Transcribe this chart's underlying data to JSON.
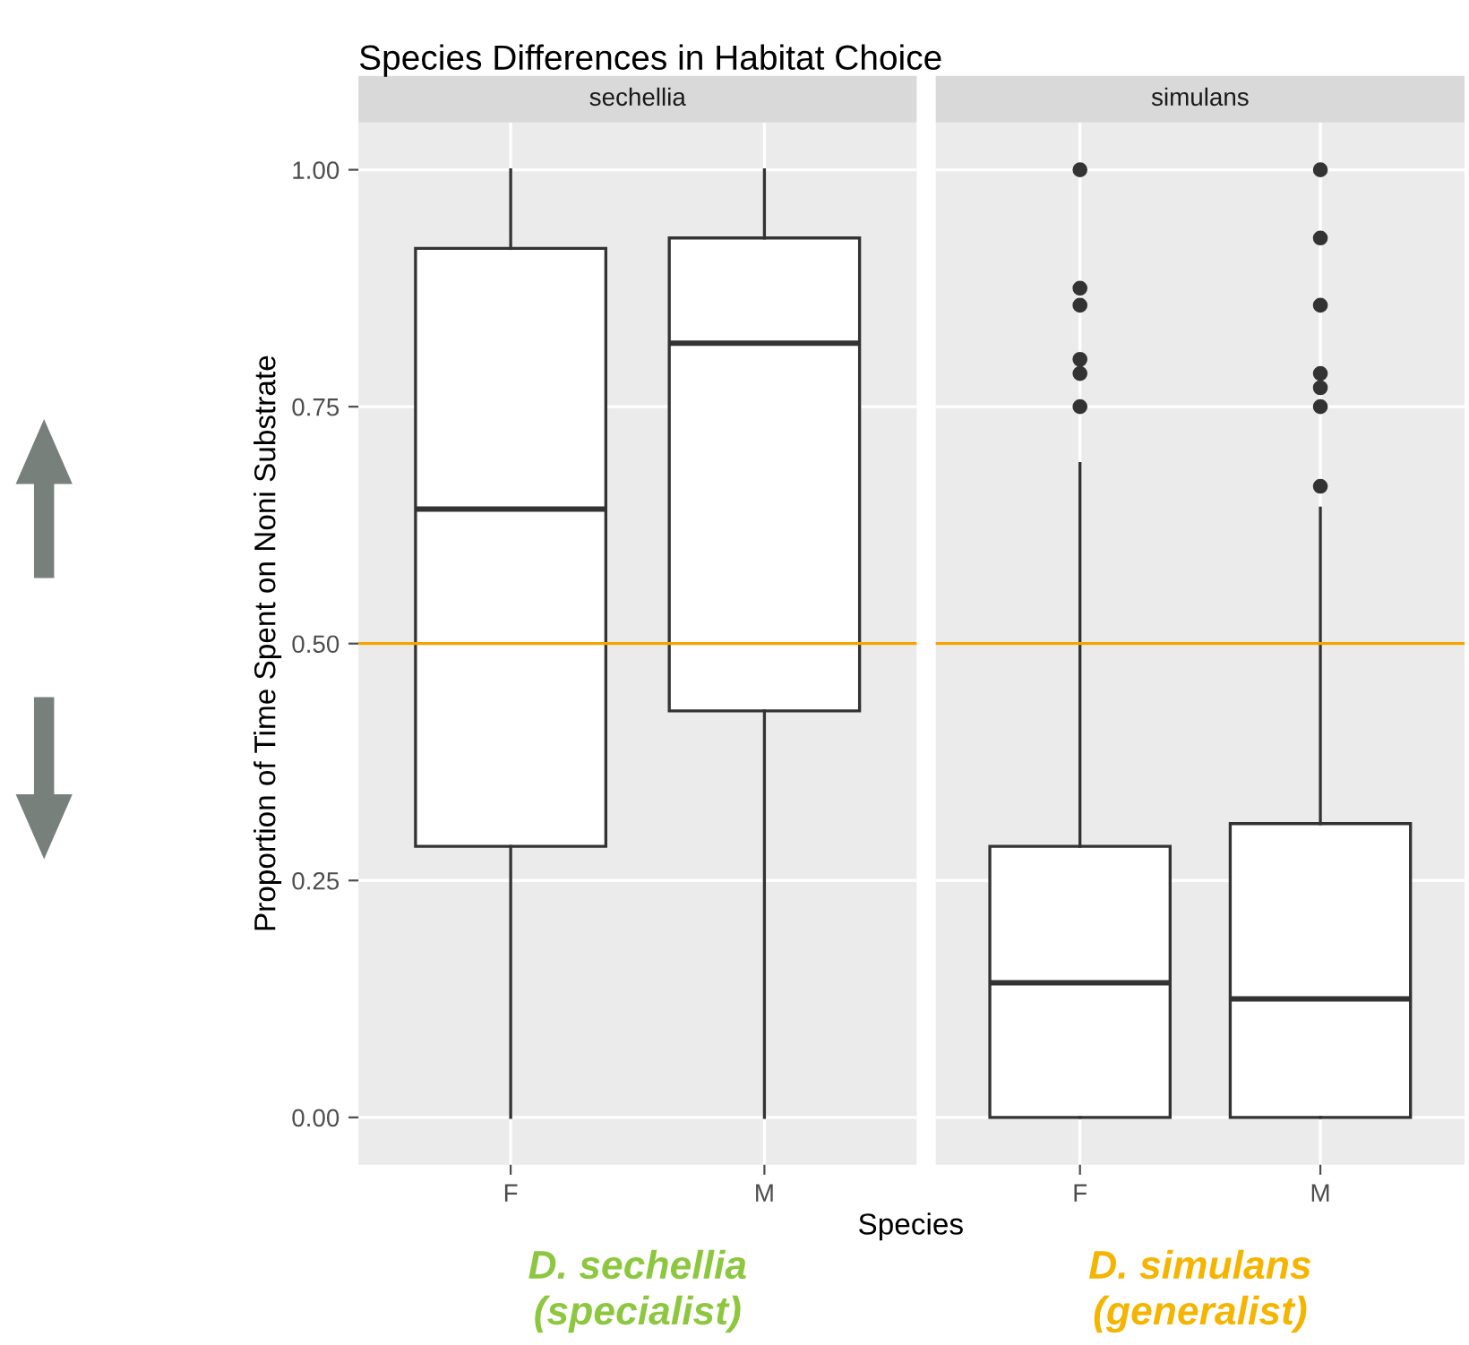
{
  "chart_data": [
    {
      "type": "box",
      "title": "Species Differences in Habitat Choice",
      "subtitle": "sechellia",
      "ylabel": "Proportion of Time Spent on Noni Substrate",
      "xlabel": "Species",
      "categories": [
        "F",
        "M"
      ],
      "boxes": [
        {
          "low": 0,
          "q1": 0.286,
          "median": 0.642,
          "q3": 0.917,
          "high": 1.0
        },
        {
          "low": 0,
          "q1": 0.429,
          "median": 0.817,
          "q3": 0.928,
          "high": 1.0
        }
      ],
      "ylim": [
        -0.05,
        1.05
      ],
      "yticks": [
        {
          "value": 0,
          "label": "0.00"
        },
        {
          "value": 0.25,
          "label": "0.25"
        },
        {
          "value": 0.5,
          "label": "0.50"
        },
        {
          "value": 0.75,
          "label": "0.75"
        },
        {
          "value": 1,
          "label": "1.00"
        }
      ],
      "grid": true,
      "ref_lines": [
        {
          "axis": "y",
          "value": 0.5,
          "color": "#f5a300"
        }
      ],
      "annotations": [
        "D. sechellia\n(specialist)"
      ]
    },
    {
      "type": "box",
      "subtitle": "simulans",
      "categories": [
        "F",
        "M"
      ],
      "boxes": [
        {
          "low": 0,
          "q1": 0,
          "median": 0.142,
          "q3": 0.286,
          "high": 0.69,
          "outliers": [
            1.0,
            0.875,
            0.857,
            0.8,
            0.785,
            0.75
          ]
        },
        {
          "low": 0,
          "q1": 0,
          "median": 0.125,
          "q3": 0.31,
          "high": 0.643,
          "outliers": [
            1.0,
            0.928,
            0.857,
            0.785,
            0.77,
            0.75,
            0.666
          ]
        }
      ],
      "ylim": [
        -0.05,
        1.05
      ],
      "yticks": [
        0,
        0.25,
        0.5,
        0.75,
        1
      ],
      "tick_labels": "x",
      "grid": true,
      "ref_lines": [
        {
          "axis": "y",
          "value": 0.5,
          "color": "#f5a300"
        }
      ],
      "annotations": [
        "D. simulans\n(generalist)"
      ]
    }
  ]
}
